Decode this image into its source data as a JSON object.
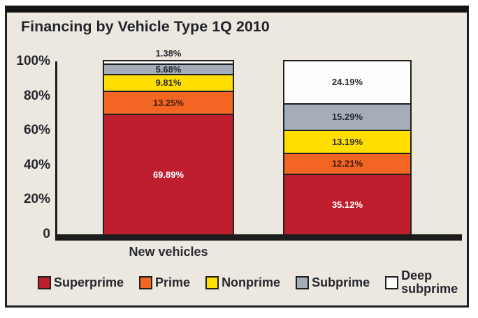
{
  "colors": {
    "panel_background": "#ECE8DF",
    "frame_border": "#202020",
    "axis": "#1c1c1c",
    "text_dark": "#26262e"
  },
  "chart_data": {
    "type": "bar",
    "stacked": true,
    "title": "Financing by Vehicle Type 1Q 2010",
    "categories": [
      "New vehicles",
      ""
    ],
    "series": [
      {
        "name": "Superprime",
        "color": "#BE1E2D",
        "label_color": "#ffffff",
        "values": [
          69.89,
          35.12
        ]
      },
      {
        "name": "Prime",
        "color": "#F26522",
        "label_color": "#4a1d10",
        "values": [
          13.25,
          12.21
        ]
      },
      {
        "name": "Nonprime",
        "color": "#FFDE00",
        "label_color": "#2f2f28",
        "values": [
          9.81,
          13.19
        ]
      },
      {
        "name": "Subprime",
        "color": "#A5AEB8",
        "label_color": "#272b33",
        "values": [
          5.68,
          15.29
        ]
      },
      {
        "name": "Deep subprime",
        "color": "#FDFDFB",
        "label_color": "#2b2b33",
        "values": [
          1.38,
          24.19
        ],
        "legend_wrap": true
      }
    ],
    "y_ticks": [
      "100%",
      "80%",
      "60%",
      "40%",
      "20%",
      "0"
    ],
    "ylim": [
      0,
      100
    ],
    "value_suffix": "%",
    "grid": false,
    "legend_position": "bottom"
  }
}
